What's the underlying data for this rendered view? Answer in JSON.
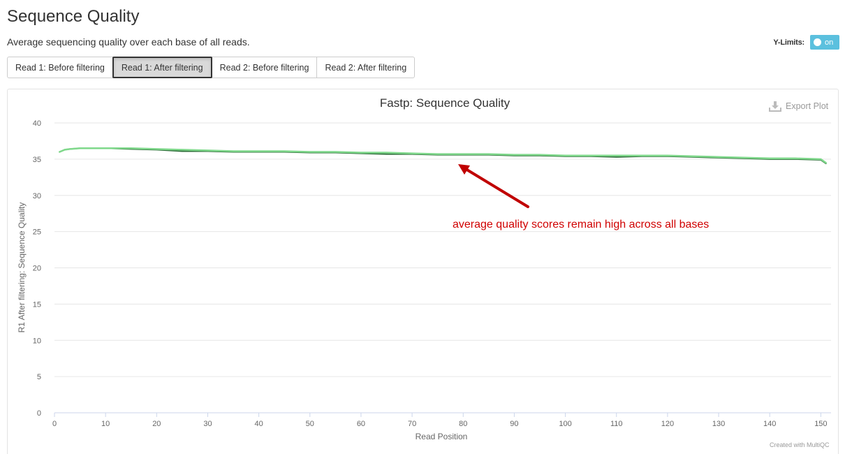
{
  "header": {
    "title": "Sequence Quality",
    "subtitle": "Average sequencing quality over each base of all reads."
  },
  "ylimits": {
    "label": "Y-Limits:",
    "state": "on"
  },
  "tabs": [
    {
      "label": "Read 1: Before filtering",
      "active": false
    },
    {
      "label": "Read 1: After filtering",
      "active": true
    },
    {
      "label": "Read 2: Before filtering",
      "active": false
    },
    {
      "label": "Read 2: After filtering",
      "active": false
    }
  ],
  "export": {
    "label": "Export Plot",
    "icon": "download-icon"
  },
  "credit": "Created with MultiQC",
  "annotation": {
    "text": "average quality scores remain high across all bases",
    "color": "#d00000"
  },
  "colors": {
    "light_series": "#7fd88b",
    "dark_series": "#2f6e3a",
    "gridline": "#e6e6e6",
    "toggle": "#5bc0de"
  },
  "chart_data": {
    "type": "line",
    "title": "Fastp: Sequence Quality",
    "xlabel": "Read Position",
    "ylabel": "R1 After filtering: Sequence Quality",
    "xlim": [
      0,
      152
    ],
    "ylim": [
      0,
      40
    ],
    "xticks": [
      0,
      10,
      20,
      30,
      40,
      50,
      60,
      70,
      80,
      90,
      100,
      110,
      120,
      130,
      140,
      150
    ],
    "yticks": [
      0,
      5,
      10,
      15,
      20,
      25,
      30,
      35,
      40
    ],
    "grid": true,
    "series": [
      {
        "color": "#2f6e3a",
        "x": [
          1,
          2,
          3,
          5,
          8,
          10,
          15,
          20,
          25,
          30,
          35,
          40,
          45,
          50,
          55,
          60,
          65,
          70,
          75,
          80,
          85,
          90,
          95,
          100,
          105,
          110,
          115,
          120,
          125,
          130,
          135,
          140,
          145,
          150,
          151
        ],
        "y": [
          36.0,
          36.3,
          36.4,
          36.5,
          36.5,
          36.5,
          36.4,
          36.3,
          36.1,
          36.1,
          36.0,
          36.0,
          36.0,
          35.9,
          35.9,
          35.8,
          35.7,
          35.7,
          35.6,
          35.6,
          35.6,
          35.5,
          35.5,
          35.4,
          35.4,
          35.3,
          35.4,
          35.4,
          35.3,
          35.2,
          35.1,
          35.0,
          35.0,
          34.9,
          34.4
        ]
      },
      {
        "color": "#7fd88b",
        "x": [
          1,
          2,
          3,
          5,
          8,
          10,
          15,
          20,
          25,
          30,
          35,
          40,
          45,
          50,
          55,
          60,
          65,
          70,
          75,
          80,
          85,
          90,
          95,
          100,
          105,
          110,
          115,
          120,
          125,
          130,
          135,
          140,
          145,
          150,
          151
        ],
        "y": [
          36.0,
          36.3,
          36.4,
          36.5,
          36.5,
          36.5,
          36.5,
          36.4,
          36.3,
          36.2,
          36.1,
          36.1,
          36.1,
          36.0,
          36.0,
          35.9,
          35.9,
          35.8,
          35.7,
          35.7,
          35.7,
          35.6,
          35.6,
          35.5,
          35.5,
          35.5,
          35.5,
          35.5,
          35.4,
          35.3,
          35.2,
          35.1,
          35.1,
          35.0,
          34.5
        ]
      }
    ]
  }
}
